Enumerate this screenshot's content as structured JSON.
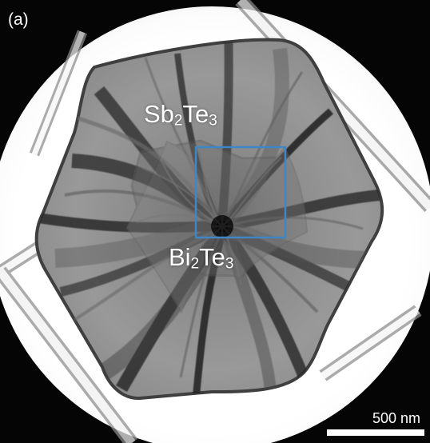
{
  "figure": {
    "panel_label": "(a)",
    "top_material": {
      "base": "Sb",
      "subscript_1": "2",
      "middle": "Te",
      "subscript_2": "3"
    },
    "bottom_material": {
      "base": "Bi",
      "subscript_1": "2",
      "middle": "Te",
      "subscript_2": "3"
    },
    "scale_bar": {
      "label": "500 nm"
    },
    "colors": {
      "background": "#050505",
      "illumination": "#ffffff",
      "crystal": "#858585",
      "dark_band": "#242424",
      "selection_box": "#3f86c6",
      "text": "#ffffff"
    }
  }
}
